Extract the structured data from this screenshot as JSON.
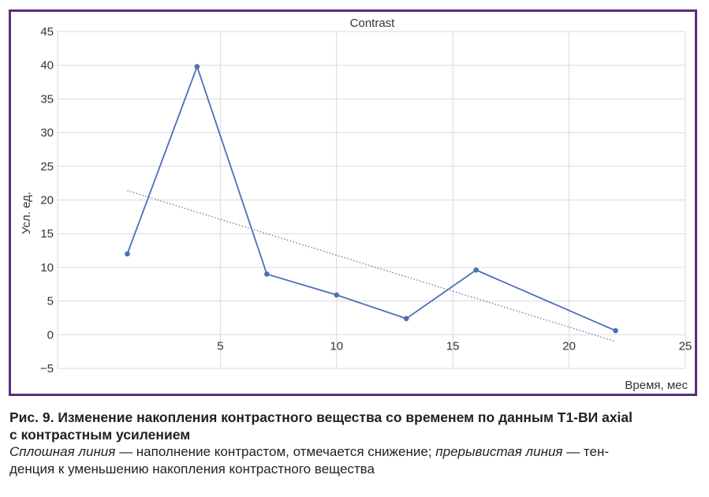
{
  "chart_data": {
    "type": "line",
    "title": "Contrast",
    "xlabel": "Время, мес",
    "ylabel": "Усл. ед.",
    "xlim": [
      -2,
      25
    ],
    "ylim": [
      -5,
      45
    ],
    "xticks": [
      5,
      10,
      15,
      20,
      25
    ],
    "yticks": [
      -5,
      0,
      5,
      10,
      15,
      20,
      25,
      30,
      35,
      40,
      45
    ],
    "grid": true,
    "series": [
      {
        "x": [
          1,
          4,
          7,
          10,
          13,
          16,
          22
        ],
        "y": [
          12,
          39.8,
          9,
          5.9,
          2.4,
          9.6,
          0.6
        ],
        "style": "solid",
        "color": "#4a6fb5"
      },
      {
        "x": [
          1,
          22
        ],
        "y": [
          21.4,
          -1
        ],
        "style": "dotted",
        "color": "#4a6fb5"
      }
    ]
  },
  "caption": {
    "title_line1": "Рис. 9. Изменение накопления контрастного вещества со временем по данным Т1-ВИ axial",
    "title_line2": "с контрастным усилением",
    "desc_italic1": "Сплошная линия",
    "desc_text1": " — наполнение контрастом, отмечается снижение; ",
    "desc_italic2": "прерывистая линия",
    "desc_text2": " — тен-",
    "desc_line2": "денция к уменьшению накопления контрастного вещества"
  },
  "colors": {
    "frame": "#5b2d7c",
    "line": "#4a6fb5",
    "grid": "#d9d9d9"
  }
}
